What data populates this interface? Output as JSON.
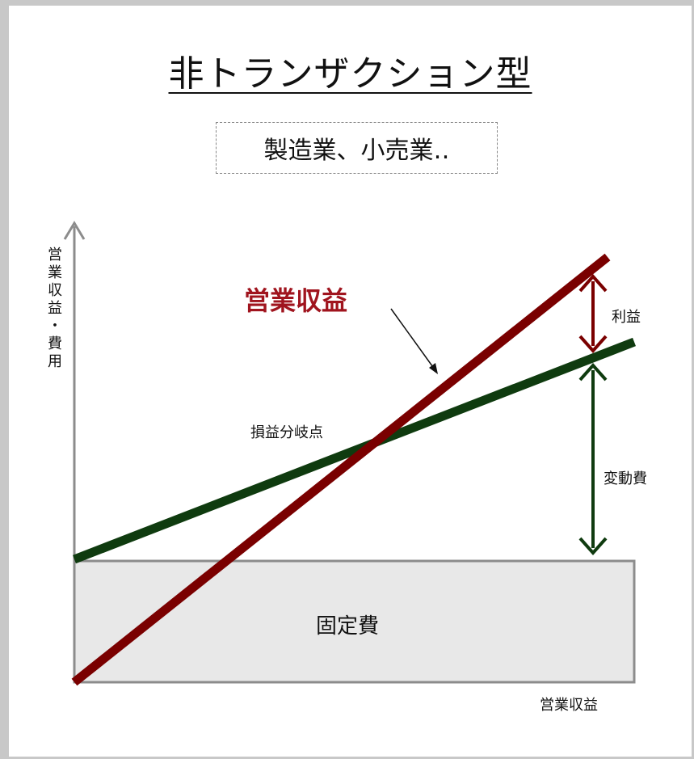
{
  "title": "非トランザクション型",
  "subtitle": "製造業、小売業‥",
  "diagram": {
    "y_axis_label": "営業収益・費用",
    "x_axis_label": "営業収益",
    "fixed_cost_label": "固定費",
    "revenue_label": "営業収益",
    "break_even_label": "損益分岐点",
    "profit_label": "利益",
    "variable_cost_label": "変動費"
  },
  "colors": {
    "revenue": "#7a0000",
    "cost": "#0f3b0f",
    "fixed_fill": "#e8e8e8",
    "axis": "#8c8c8c"
  }
}
